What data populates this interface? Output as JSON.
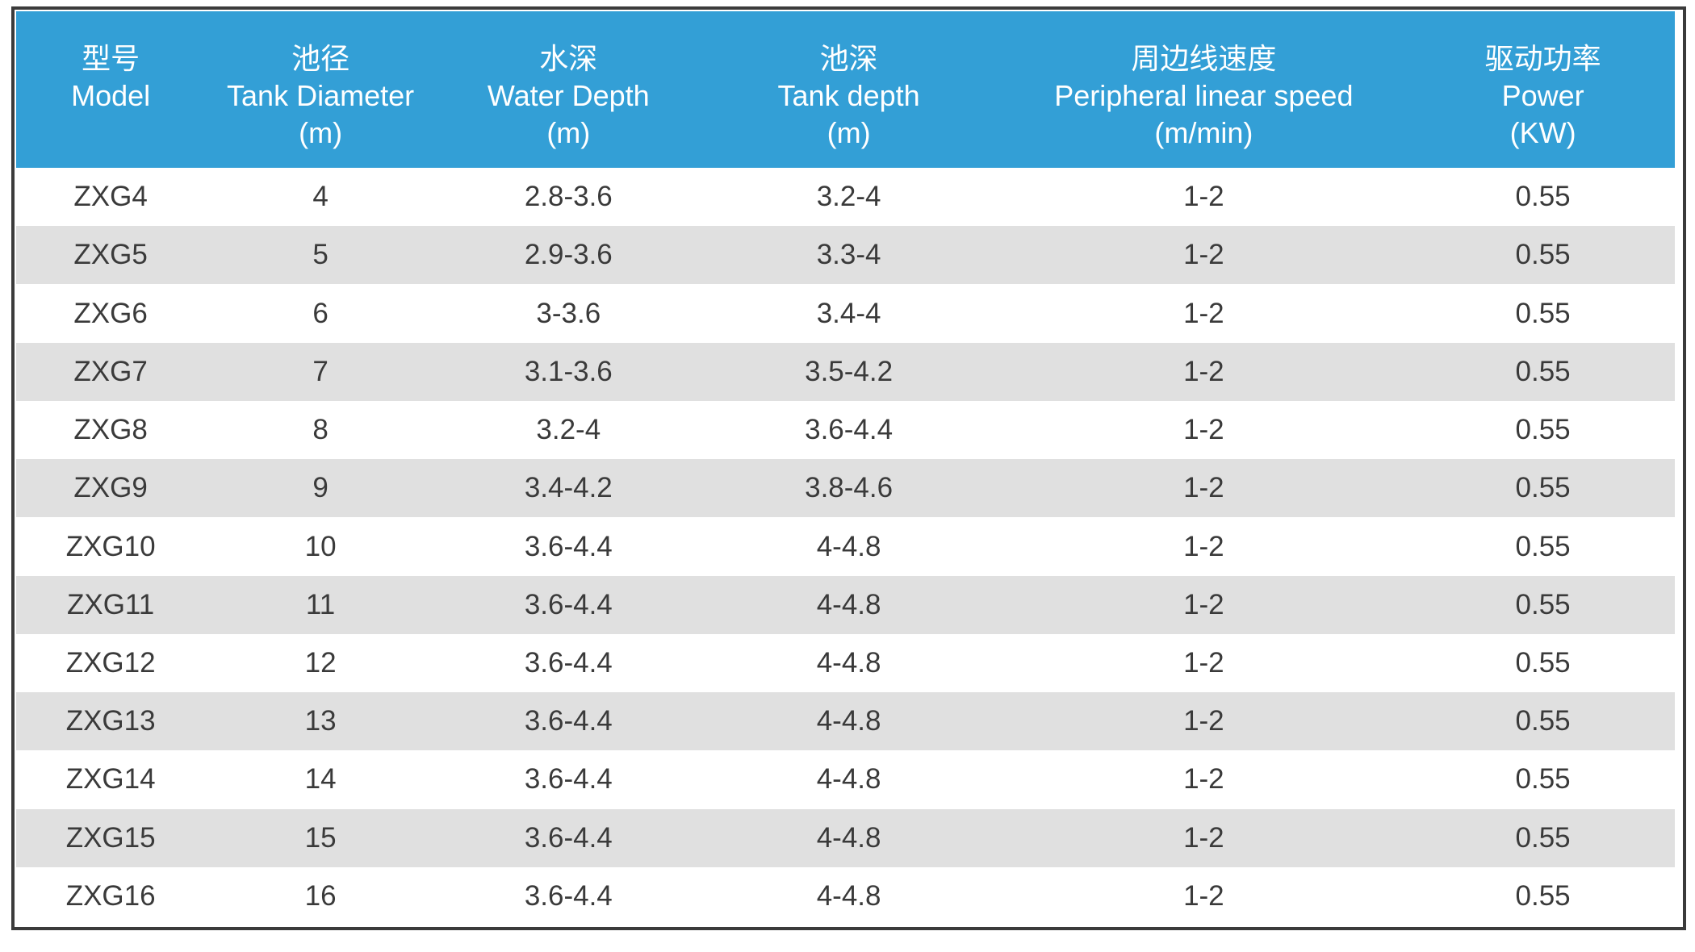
{
  "colors": {
    "header_bg": "#339fd6",
    "row_alt_bg": "#e0e0e0",
    "frame_border": "#3b3b3b",
    "body_text": "#3a3a3a",
    "header_text": "#ffffff"
  },
  "table": {
    "columns": [
      {
        "key": "model",
        "zh": "型号",
        "en": "Model",
        "unit": ""
      },
      {
        "key": "tank-diameter",
        "zh": "池径",
        "en": "Tank Diameter",
        "unit": "(m)"
      },
      {
        "key": "water-depth",
        "zh": "水深",
        "en": "Water Depth",
        "unit": "(m)"
      },
      {
        "key": "tank-depth",
        "zh": "池深",
        "en": "Tank depth",
        "unit": "(m)"
      },
      {
        "key": "peripheral-linear-speed",
        "zh": "周边线速度",
        "en": "Peripheral linear speed",
        "unit": "(m/min)"
      },
      {
        "key": "power",
        "zh": "驱动功率",
        "en": "Power",
        "unit": "(KW)"
      }
    ],
    "rows": [
      [
        "ZXG4",
        "4",
        "2.8-3.6",
        "3.2-4",
        "1-2",
        "0.55"
      ],
      [
        "ZXG5",
        "5",
        "2.9-3.6",
        "3.3-4",
        "1-2",
        "0.55"
      ],
      [
        "ZXG6",
        "6",
        "3-3.6",
        "3.4-4",
        "1-2",
        "0.55"
      ],
      [
        "ZXG7",
        "7",
        "3.1-3.6",
        "3.5-4.2",
        "1-2",
        "0.55"
      ],
      [
        "ZXG8",
        "8",
        "3.2-4",
        "3.6-4.4",
        "1-2",
        "0.55"
      ],
      [
        "ZXG9",
        "9",
        "3.4-4.2",
        "3.8-4.6",
        "1-2",
        "0.55"
      ],
      [
        "ZXG10",
        "10",
        "3.6-4.4",
        "4-4.8",
        "1-2",
        "0.55"
      ],
      [
        "ZXG11",
        "11",
        "3.6-4.4",
        "4-4.8",
        "1-2",
        "0.55"
      ],
      [
        "ZXG12",
        "12",
        "3.6-4.4",
        "4-4.8",
        "1-2",
        "0.55"
      ],
      [
        "ZXG13",
        "13",
        "3.6-4.4",
        "4-4.8",
        "1-2",
        "0.55"
      ],
      [
        "ZXG14",
        "14",
        "3.6-4.4",
        "4-4.8",
        "1-2",
        "0.55"
      ],
      [
        "ZXG15",
        "15",
        "3.6-4.4",
        "4-4.8",
        "1-2",
        "0.55"
      ],
      [
        "ZXG16",
        "16",
        "3.6-4.4",
        "4-4.8",
        "1-2",
        "0.55"
      ]
    ]
  }
}
